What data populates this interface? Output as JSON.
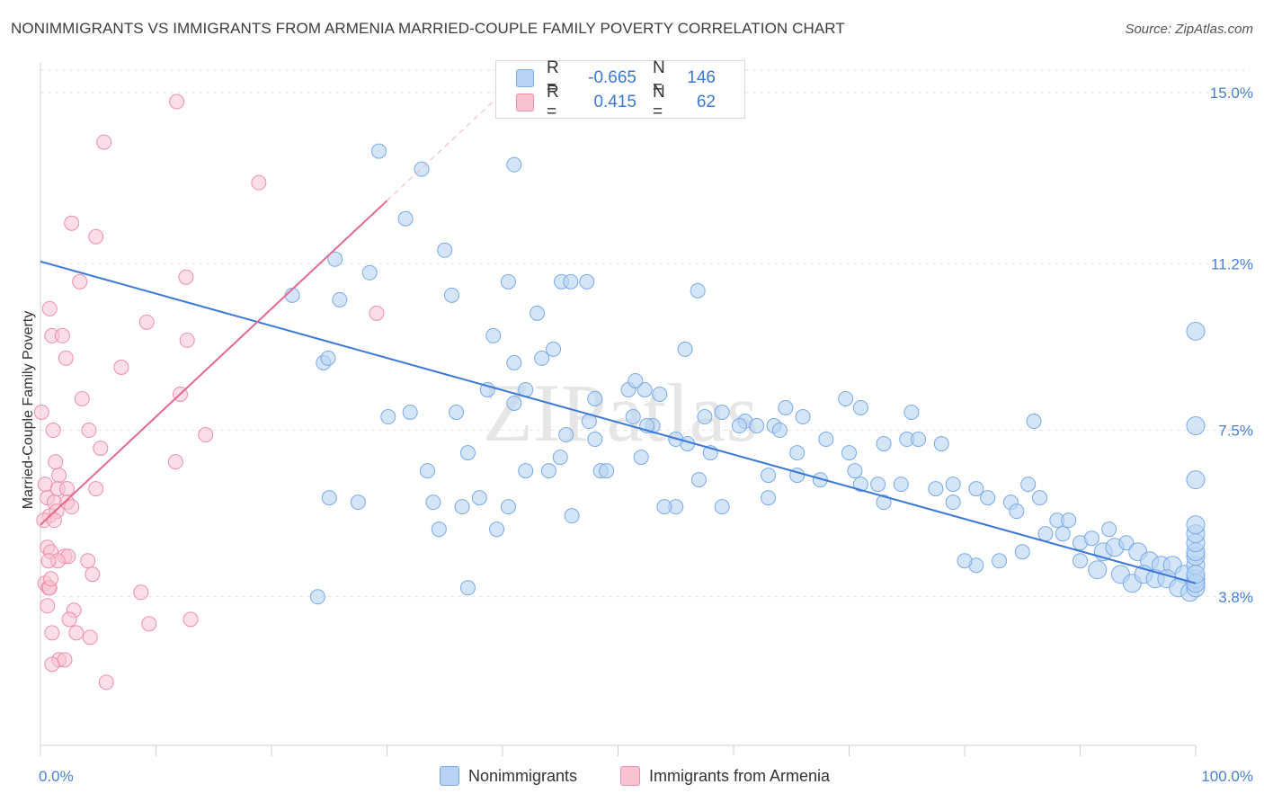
{
  "title": "NONIMMIGRANTS VS IMMIGRANTS FROM ARMENIA MARRIED-COUPLE FAMILY POVERTY CORRELATION CHART",
  "source": "Source: ZipAtlas.com",
  "watermark": "ZIPatlas",
  "legend": {
    "series": [
      {
        "name": "Nonimmigrants",
        "r_label": "R =",
        "r_value": "-0.665",
        "n_label": "N =",
        "n_value": "146",
        "color": "#7aaae8",
        "fill": "#b8d3f4"
      },
      {
        "name": "Immigrants from Armenia",
        "r_label": "R =",
        "r_value": "0.415",
        "n_label": "N =",
        "n_value": "62",
        "color": "#ee8fab",
        "fill": "#f7c3d3"
      }
    ]
  },
  "chart_data": {
    "type": "scatter",
    "title": "NONIMMIGRANTS VS IMMIGRANTS FROM ARMENIA MARRIED-COUPLE FAMILY POVERTY CORRELATION CHART",
    "xlabel": "",
    "ylabel": "Married-Couple Family Poverty",
    "xlim": [
      0,
      100
    ],
    "ylim": [
      0.5,
      15.5
    ],
    "x_tick_labels": [
      "0.0%",
      "100.0%"
    ],
    "y_ticks": [
      3.8,
      7.5,
      11.2,
      15.0
    ],
    "y_tick_labels": [
      "3.8%",
      "7.5%",
      "11.2%",
      "15.0%"
    ],
    "grid": true,
    "series": [
      {
        "name": "Nonimmigrants",
        "color": "#3b78d8",
        "trend": {
          "x": [
            0,
            100
          ],
          "y": [
            11.25,
            4.1
          ]
        },
        "points": [
          [
            29.3,
            13.7
          ],
          [
            33.0,
            13.3
          ],
          [
            41.0,
            13.4
          ],
          [
            31.6,
            12.2
          ],
          [
            35.0,
            11.5
          ],
          [
            25.5,
            11.3
          ],
          [
            28.5,
            11.0
          ],
          [
            21.8,
            10.5
          ],
          [
            25.9,
            10.4
          ],
          [
            35.6,
            10.5
          ],
          [
            40.5,
            10.8
          ],
          [
            45.1,
            10.8
          ],
          [
            45.9,
            10.8
          ],
          [
            47.3,
            10.8
          ],
          [
            56.9,
            10.6
          ],
          [
            43.0,
            10.1
          ],
          [
            39.2,
            9.6
          ],
          [
            44.4,
            9.3
          ],
          [
            24.5,
            9.0
          ],
          [
            24.9,
            9.1
          ],
          [
            41.0,
            9.0
          ],
          [
            43.4,
            9.1
          ],
          [
            55.8,
            9.3
          ],
          [
            104.2,
            9.7
          ],
          [
            38.7,
            8.4
          ],
          [
            50.9,
            8.4
          ],
          [
            52.3,
            8.4
          ],
          [
            53.6,
            8.3
          ],
          [
            69.7,
            8.2
          ],
          [
            41.0,
            8.1
          ],
          [
            75.4,
            7.9
          ],
          [
            71.0,
            8.0
          ],
          [
            30.1,
            7.8
          ],
          [
            36.0,
            7.9
          ],
          [
            51.3,
            7.8
          ],
          [
            59.0,
            7.9
          ],
          [
            61.0,
            7.7
          ],
          [
            32.0,
            7.9
          ],
          [
            66.0,
            7.8
          ],
          [
            63.5,
            7.6
          ],
          [
            47.5,
            7.7
          ],
          [
            57.5,
            7.8
          ],
          [
            53.0,
            7.6
          ],
          [
            86.0,
            7.7
          ],
          [
            104.0,
            7.6
          ],
          [
            45.5,
            7.4
          ],
          [
            48.0,
            7.3
          ],
          [
            52.5,
            7.6
          ],
          [
            56.0,
            7.2
          ],
          [
            62.0,
            7.6
          ],
          [
            64.0,
            7.5
          ],
          [
            68.0,
            7.3
          ],
          [
            73.0,
            7.2
          ],
          [
            75.0,
            7.3
          ],
          [
            76.0,
            7.3
          ],
          [
            78.0,
            7.2
          ],
          [
            70.0,
            7.0
          ],
          [
            65.5,
            7.0
          ],
          [
            58.0,
            7.0
          ],
          [
            52.0,
            6.9
          ],
          [
            45.0,
            6.9
          ],
          [
            44.0,
            6.6
          ],
          [
            42.0,
            6.6
          ],
          [
            37.0,
            7.0
          ],
          [
            33.5,
            6.6
          ],
          [
            48.5,
            6.6
          ],
          [
            49.0,
            6.6
          ],
          [
            57.0,
            6.4
          ],
          [
            63.0,
            6.5
          ],
          [
            67.5,
            6.4
          ],
          [
            70.5,
            6.6
          ],
          [
            72.5,
            6.3
          ],
          [
            74.5,
            6.3
          ],
          [
            77.5,
            6.2
          ],
          [
            79.0,
            6.3
          ],
          [
            81.0,
            6.2
          ],
          [
            82.0,
            6.0
          ],
          [
            84.0,
            5.9
          ],
          [
            85.5,
            6.3
          ],
          [
            86.5,
            6.0
          ],
          [
            88.0,
            5.5
          ],
          [
            89.0,
            5.5
          ],
          [
            84.5,
            5.7
          ],
          [
            79.0,
            5.9
          ],
          [
            73.0,
            5.9
          ],
          [
            71.0,
            6.3
          ],
          [
            65.5,
            6.5
          ],
          [
            63.0,
            6.0
          ],
          [
            59.0,
            5.8
          ],
          [
            55.0,
            5.8
          ],
          [
            54.0,
            5.8
          ],
          [
            46.0,
            5.6
          ],
          [
            40.5,
            5.8
          ],
          [
            38.0,
            6.0
          ],
          [
            36.5,
            5.8
          ],
          [
            34.0,
            5.9
          ],
          [
            34.5,
            5.3
          ],
          [
            39.5,
            5.3
          ],
          [
            27.5,
            5.9
          ],
          [
            87.0,
            5.2
          ],
          [
            88.5,
            5.2
          ],
          [
            90.0,
            5.0
          ],
          [
            91.0,
            5.1
          ],
          [
            92.5,
            5.3
          ],
          [
            92.0,
            4.8
          ],
          [
            93.0,
            4.9
          ],
          [
            94.0,
            5.0
          ],
          [
            95.0,
            4.8
          ],
          [
            96.0,
            4.6
          ],
          [
            97.0,
            4.5
          ],
          [
            98.0,
            4.5
          ],
          [
            99.0,
            4.3
          ],
          [
            90.0,
            4.6
          ],
          [
            91.5,
            4.4
          ],
          [
            93.5,
            4.3
          ],
          [
            94.5,
            4.1
          ],
          [
            95.5,
            4.3
          ],
          [
            96.5,
            4.2
          ],
          [
            97.5,
            4.2
          ],
          [
            98.5,
            4.0
          ],
          [
            99.5,
            3.9
          ],
          [
            100.0,
            4.0
          ],
          [
            101.0,
            4.1
          ],
          [
            102.0,
            4.2
          ],
          [
            102.5,
            4.5
          ],
          [
            103.0,
            4.7
          ],
          [
            103.5,
            4.8
          ],
          [
            100.5,
            4.1
          ],
          [
            101.5,
            4.3
          ],
          [
            103.8,
            5.0
          ],
          [
            104.5,
            5.2
          ],
          [
            104.0,
            5.4
          ],
          [
            104.2,
            6.4
          ],
          [
            85.0,
            4.8
          ],
          [
            83.0,
            4.6
          ],
          [
            81.0,
            4.5
          ],
          [
            80.0,
            4.6
          ],
          [
            37.0,
            4.0
          ],
          [
            24.0,
            3.8
          ],
          [
            25.0,
            6.0
          ],
          [
            55.0,
            7.3
          ],
          [
            60.5,
            7.6
          ],
          [
            42.0,
            8.4
          ],
          [
            51.5,
            8.6
          ],
          [
            48.0,
            8.2
          ],
          [
            64.5,
            8.0
          ]
        ]
      },
      {
        "name": "Immigrants from Armenia",
        "color": "#e6688e",
        "trend": {
          "x": [
            0,
            30
          ],
          "y": [
            5.4,
            12.6
          ]
        },
        "points": [
          [
            11.8,
            14.8
          ],
          [
            5.5,
            13.9
          ],
          [
            18.9,
            13.0
          ],
          [
            2.7,
            12.1
          ],
          [
            4.8,
            11.8
          ],
          [
            12.6,
            10.9
          ],
          [
            3.4,
            10.8
          ],
          [
            0.8,
            10.2
          ],
          [
            29.1,
            10.1
          ],
          [
            9.2,
            9.9
          ],
          [
            1.0,
            9.6
          ],
          [
            1.9,
            9.6
          ],
          [
            12.7,
            9.5
          ],
          [
            2.2,
            9.1
          ],
          [
            7.0,
            8.9
          ],
          [
            12.1,
            8.3
          ],
          [
            3.6,
            8.2
          ],
          [
            0.1,
            7.9
          ],
          [
            1.1,
            7.5
          ],
          [
            4.2,
            7.5
          ],
          [
            14.3,
            7.4
          ],
          [
            5.2,
            7.1
          ],
          [
            1.3,
            6.8
          ],
          [
            11.7,
            6.8
          ],
          [
            1.6,
            6.5
          ],
          [
            0.4,
            6.3
          ],
          [
            1.5,
            6.2
          ],
          [
            2.3,
            6.2
          ],
          [
            4.8,
            6.2
          ],
          [
            0.6,
            6.0
          ],
          [
            1.2,
            5.9
          ],
          [
            2.3,
            5.9
          ],
          [
            2.7,
            5.8
          ],
          [
            0.8,
            5.6
          ],
          [
            1.4,
            5.7
          ],
          [
            0.3,
            5.5
          ],
          [
            1.2,
            5.5
          ],
          [
            0.6,
            4.9
          ],
          [
            0.9,
            4.8
          ],
          [
            2.1,
            4.7
          ],
          [
            2.4,
            4.7
          ],
          [
            1.5,
            4.6
          ],
          [
            0.7,
            4.6
          ],
          [
            4.1,
            4.6
          ],
          [
            4.5,
            4.3
          ],
          [
            0.4,
            4.1
          ],
          [
            0.7,
            4.0
          ],
          [
            0.8,
            4.0
          ],
          [
            8.7,
            3.9
          ],
          [
            0.6,
            3.6
          ],
          [
            2.9,
            3.5
          ],
          [
            1.0,
            3.0
          ],
          [
            3.1,
            3.0
          ],
          [
            9.4,
            3.2
          ],
          [
            13.0,
            3.3
          ],
          [
            4.3,
            2.9
          ],
          [
            1.6,
            2.4
          ],
          [
            2.1,
            2.4
          ],
          [
            1.0,
            2.3
          ],
          [
            5.7,
            1.9
          ],
          [
            2.5,
            3.3
          ],
          [
            0.9,
            4.2
          ]
        ]
      }
    ]
  }
}
